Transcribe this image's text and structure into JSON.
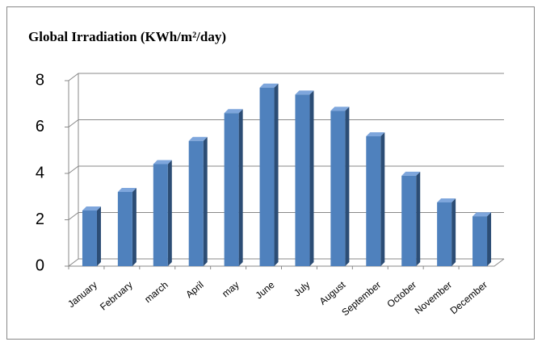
{
  "chart_data": {
    "type": "bar",
    "title": "Global Irradiation (KWh/m²/day)",
    "categories": [
      "January",
      "February",
      "march",
      "April",
      "may",
      "June",
      "July",
      "August",
      "September",
      "October",
      "November",
      "December"
    ],
    "values": [
      2.4,
      3.2,
      4.4,
      5.4,
      6.6,
      7.7,
      7.4,
      6.7,
      5.6,
      3.9,
      2.75,
      2.15
    ],
    "color": "#4f81bd",
    "ylim": [
      0,
      8
    ],
    "yticks": [
      0,
      2,
      4,
      6,
      8
    ],
    "grid": true
  }
}
